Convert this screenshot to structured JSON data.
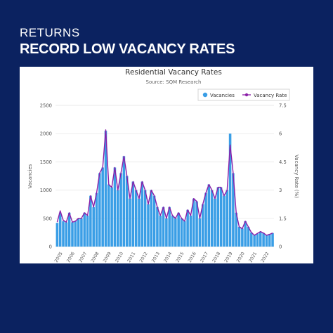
{
  "header": {
    "kicker": "RETURNS",
    "headline": "RECORD LOW VACANCY RATES"
  },
  "chart_data": {
    "type": "bar+line",
    "title": "Residential Vacancy Rates",
    "subtitle": "Source: SQM Research",
    "ylabel": "Vacancies",
    "y2label": "Vacancy Rate (%)",
    "ylim": [
      0,
      2500
    ],
    "y2lim": [
      0,
      7.5
    ],
    "yticks": [
      "0",
      "500",
      "1000",
      "1500",
      "2000",
      "2500"
    ],
    "y2ticks": [
      "0",
      "1.5",
      "3",
      "4.5",
      "6",
      "7.5"
    ],
    "xticks": [
      "2005",
      "2006",
      "2007",
      "2008",
      "2009",
      "2010",
      "2011",
      "2012",
      "2013",
      "2014",
      "2015",
      "2016",
      "2017",
      "2018",
      "2019",
      "2020",
      "2021",
      "2022"
    ],
    "legend_position": "top-right",
    "colors": {
      "bars": "#3a9ee6",
      "line": "#8b1fa8"
    },
    "series": [
      {
        "name": "Vacancies",
        "type": "bar",
        "x": [
          2005.0,
          2005.25,
          2005.5,
          2005.75,
          2006.0,
          2006.25,
          2006.5,
          2006.75,
          2007.0,
          2007.25,
          2007.5,
          2007.75,
          2008.0,
          2008.25,
          2008.5,
          2008.75,
          2009.0,
          2009.25,
          2009.5,
          2009.75,
          2010.0,
          2010.25,
          2010.5,
          2010.75,
          2011.0,
          2011.25,
          2011.5,
          2011.75,
          2012.0,
          2012.25,
          2012.5,
          2012.75,
          2013.0,
          2013.25,
          2013.5,
          2013.75,
          2014.0,
          2014.25,
          2014.5,
          2014.75,
          2015.0,
          2015.25,
          2015.5,
          2015.75,
          2016.0,
          2016.25,
          2016.5,
          2016.75,
          2017.0,
          2017.25,
          2017.5,
          2017.75,
          2018.0,
          2018.25,
          2018.5,
          2018.75,
          2019.0,
          2019.25,
          2019.5,
          2019.75,
          2020.0,
          2020.25,
          2020.5,
          2020.75,
          2021.0,
          2021.25,
          2021.5,
          2021.75,
          2022.0,
          2022.25,
          2022.5,
          2022.75
        ],
        "values": [
          420,
          600,
          450,
          430,
          600,
          430,
          450,
          500,
          500,
          600,
          550,
          900,
          700,
          950,
          1300,
          1400,
          2050,
          1100,
          1050,
          1400,
          1000,
          1300,
          1600,
          1250,
          850,
          1150,
          1000,
          850,
          1150,
          1000,
          750,
          1000,
          900,
          700,
          550,
          700,
          500,
          700,
          550,
          500,
          600,
          500,
          450,
          650,
          550,
          850,
          800,
          500,
          750,
          950,
          1100,
          1000,
          850,
          1050,
          1050,
          900,
          1000,
          2000,
          1300,
          600,
          350,
          320,
          450,
          350,
          250,
          200,
          230,
          260,
          240,
          200,
          220,
          240
        ]
      },
      {
        "name": "Vacancy Rate",
        "type": "line",
        "x": [
          2005.0,
          2005.25,
          2005.5,
          2005.75,
          2006.0,
          2006.25,
          2006.5,
          2006.75,
          2007.0,
          2007.25,
          2007.5,
          2007.75,
          2008.0,
          2008.25,
          2008.5,
          2008.75,
          2009.0,
          2009.25,
          2009.5,
          2009.75,
          2010.0,
          2010.25,
          2010.5,
          2010.75,
          2011.0,
          2011.25,
          2011.5,
          2011.75,
          2012.0,
          2012.25,
          2012.5,
          2012.75,
          2013.0,
          2013.25,
          2013.5,
          2013.75,
          2014.0,
          2014.25,
          2014.5,
          2014.75,
          2015.0,
          2015.25,
          2015.5,
          2015.75,
          2016.0,
          2016.25,
          2016.5,
          2016.75,
          2017.0,
          2017.25,
          2017.5,
          2017.75,
          2018.0,
          2018.25,
          2018.5,
          2018.75,
          2019.0,
          2019.25,
          2019.5,
          2019.75,
          2020.0,
          2020.25,
          2020.5,
          2020.75,
          2021.0,
          2021.25,
          2021.5,
          2021.75,
          2022.0,
          2022.25,
          2022.5,
          2022.75
        ],
        "values": [
          1.3,
          1.9,
          1.4,
          1.3,
          1.8,
          1.3,
          1.35,
          1.5,
          1.5,
          1.8,
          1.65,
          2.7,
          2.1,
          2.85,
          3.9,
          4.2,
          6.2,
          3.3,
          3.15,
          4.2,
          3.0,
          3.9,
          4.8,
          3.75,
          2.55,
          3.45,
          3.0,
          2.55,
          3.45,
          3.0,
          2.25,
          3.0,
          2.7,
          2.1,
          1.65,
          2.1,
          1.5,
          2.1,
          1.65,
          1.5,
          1.8,
          1.5,
          1.35,
          1.95,
          1.65,
          2.55,
          2.4,
          1.5,
          2.25,
          2.85,
          3.3,
          3.0,
          2.55,
          3.15,
          3.15,
          2.7,
          3.0,
          5.4,
          3.9,
          1.8,
          1.05,
          0.95,
          1.35,
          1.05,
          0.75,
          0.6,
          0.7,
          0.8,
          0.72,
          0.6,
          0.65,
          0.72
        ]
      }
    ]
  }
}
